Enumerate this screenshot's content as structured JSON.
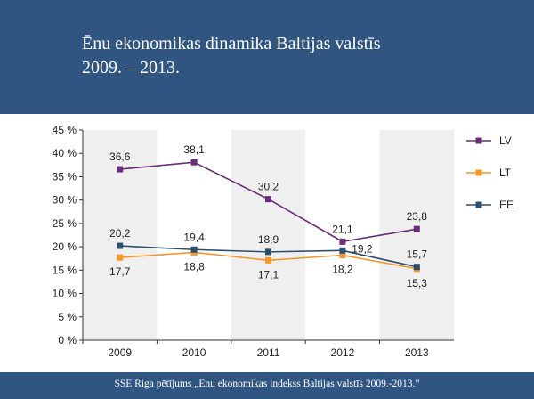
{
  "header": {
    "title_line1": "Ēnu ekonomikas dinamika Baltijas valstīs",
    "title_line2": "2009. – 2013."
  },
  "footer": {
    "source": "SSE Riga pētījums „Ēnu ekonomikas indekss Baltijas valstīs 2009.-2013.”"
  },
  "colors": {
    "LV": "#6b2d7a",
    "LT": "#f4962a",
    "EE": "#2c4f6b",
    "band": "#efefef"
  },
  "chart_data": {
    "type": "line",
    "categories": [
      "2009",
      "2010",
      "2011",
      "2012",
      "2013"
    ],
    "ylim": [
      0,
      45
    ],
    "yticks": [
      0,
      5,
      10,
      15,
      20,
      25,
      30,
      35,
      40,
      45
    ],
    "ytick_labels": [
      "0 %",
      "5 %",
      "10 %",
      "15 %",
      "20 %",
      "25 %",
      "30 %",
      "35 %",
      "40 %",
      "45 %"
    ],
    "grid": false,
    "legend": "right",
    "series": [
      {
        "name": "LV",
        "values": [
          36.6,
          38.1,
          30.2,
          21.1,
          23.8
        ],
        "labels": [
          "36,6",
          "38,1",
          "30,2",
          "21,1",
          "23,8"
        ]
      },
      {
        "name": "LT",
        "values": [
          17.7,
          18.8,
          17.1,
          18.2,
          15.3
        ],
        "labels": [
          "17,7",
          "18,8",
          "17,1",
          "18,2",
          "15,3"
        ]
      },
      {
        "name": "EE",
        "values": [
          20.2,
          19.4,
          18.9,
          19.2,
          15.7
        ],
        "labels": [
          "20,2",
          "19,4",
          "18,9",
          "19,2",
          "15,7"
        ]
      }
    ]
  }
}
